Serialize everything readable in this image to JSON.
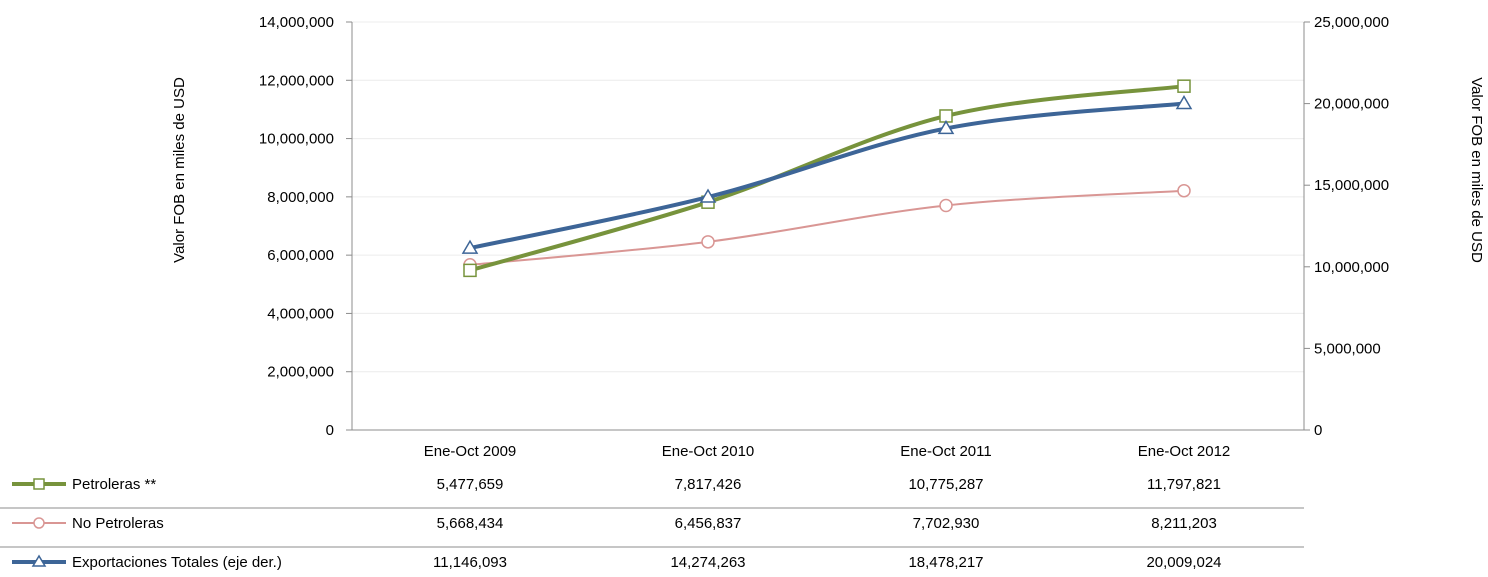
{
  "chart_data": {
    "type": "line",
    "categories": [
      "Ene-Oct 2009",
      "Ene-Oct 2010",
      "Ene-Oct 2011",
      "Ene-Oct 2012"
    ],
    "ylabel_left": "Valor FOB  en miles de USD",
    "ylabel_right": "Valor FOB en miles de USD",
    "ylim_left": [
      0,
      14000000
    ],
    "ylim_right": [
      0,
      25000000
    ],
    "yticks_left": [
      "0",
      "2,000,000",
      "4,000,000",
      "6,000,000",
      "8,000,000",
      "10,000,000",
      "12,000,000",
      "14,000,000"
    ],
    "yticks_right": [
      "0",
      "5,000,000",
      "10,000,000",
      "15,000,000",
      "20,000,000",
      "25,000,000"
    ],
    "grid": true,
    "legend": "data-table-below",
    "series": [
      {
        "name": "Petroleras  **",
        "axis": "left",
        "color": "#77933c",
        "marker": "square",
        "values": [
          5477659,
          7817426,
          10775287,
          11797821
        ],
        "labels": [
          "5,477,659",
          "7,817,426",
          "10,775,287",
          "11,797,821"
        ]
      },
      {
        "name": "No Petroleras",
        "axis": "left",
        "color": "#d99694",
        "marker": "circle",
        "values": [
          5668434,
          6456837,
          7702930,
          8211203
        ],
        "labels": [
          "5,668,434",
          "6,456,837",
          "7,702,930",
          "8,211,203"
        ]
      },
      {
        "name": "Exportaciones Totales (eje der.)",
        "axis": "right",
        "color": "#3d6597",
        "marker": "triangle",
        "values": [
          11146093,
          14274263,
          18478217,
          20009024
        ],
        "labels": [
          "11,146,093",
          "14,274,263",
          "18,478,217",
          "20,009,024"
        ]
      }
    ]
  }
}
